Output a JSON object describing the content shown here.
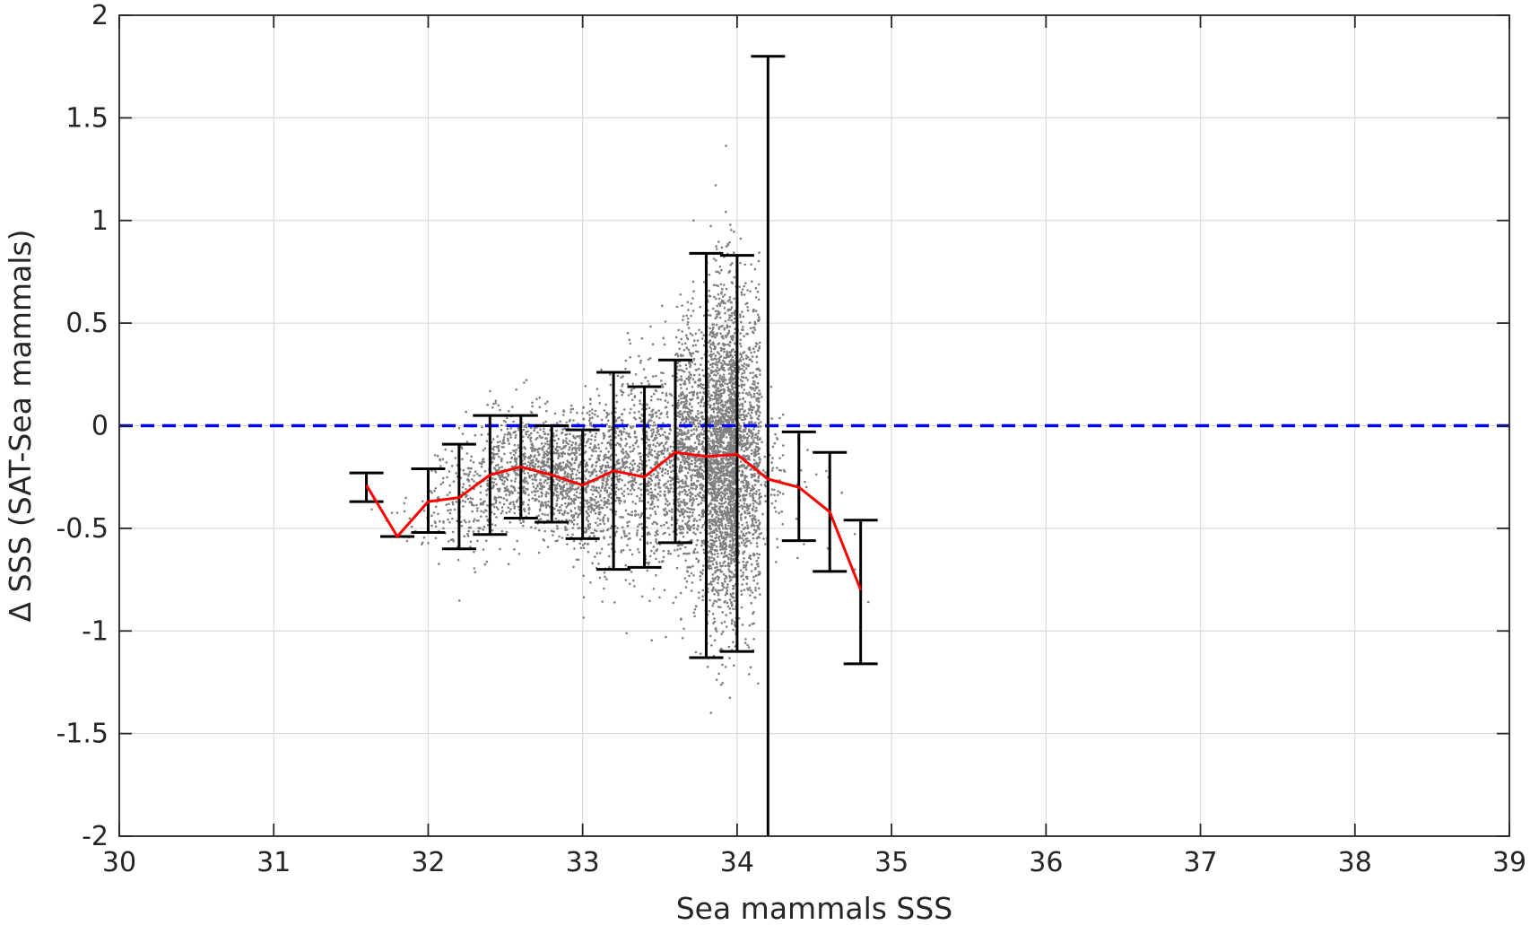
{
  "chart_data": {
    "type": "scatter",
    "title": "",
    "xlabel": "Sea mammals SSS",
    "ylabel": "Δ SSS (SAT-Sea mammals)",
    "xlim": [
      30,
      39
    ],
    "ylim": [
      -2,
      2
    ],
    "xticks": [
      30,
      31,
      32,
      33,
      34,
      35,
      36,
      37,
      38,
      39
    ],
    "xtick_labels": [
      "30",
      "31",
      "32",
      "33",
      "34",
      "35",
      "36",
      "37",
      "38",
      "39"
    ],
    "yticks": [
      2,
      1.5,
      1,
      0.5,
      0,
      -0.5,
      -1,
      -1.5,
      -2
    ],
    "ytick_labels": [
      "2",
      "1.5",
      "1",
      "0.5",
      "0",
      "-0.5",
      "-1",
      "-1.5",
      "-2"
    ],
    "grid": true,
    "colors": {
      "scatter": "#808080",
      "mean_line": "#ff0000",
      "zero_line": "#0000ff",
      "error_bars": "#000000",
      "grid": "#dcdcdc",
      "axes": "#262626"
    },
    "zero_reference_line": {
      "y": 0,
      "style": "dashed"
    },
    "binned_mean": {
      "x": [
        31.6,
        31.8,
        32.0,
        32.2,
        32.4,
        32.6,
        32.8,
        33.0,
        33.2,
        33.4,
        33.6,
        33.8,
        34.0,
        34.2,
        34.4,
        34.6,
        34.8
      ],
      "y": [
        -0.29,
        -0.54,
        -0.37,
        -0.35,
        -0.24,
        -0.2,
        -0.24,
        -0.29,
        -0.22,
        -0.25,
        -0.13,
        -0.15,
        -0.14,
        -0.26,
        -0.3,
        -0.42,
        -0.8
      ]
    },
    "error_bars": [
      {
        "x": 31.6,
        "low": -0.37,
        "high": -0.23
      },
      {
        "x": 31.8,
        "low": -0.54,
        "high": -0.54
      },
      {
        "x": 32.0,
        "low": -0.52,
        "high": -0.21
      },
      {
        "x": 32.2,
        "low": -0.6,
        "high": -0.09
      },
      {
        "x": 32.4,
        "low": -0.53,
        "high": 0.05
      },
      {
        "x": 32.6,
        "low": -0.45,
        "high": 0.05
      },
      {
        "x": 32.8,
        "low": -0.47,
        "high": 0.0
      },
      {
        "x": 33.0,
        "low": -0.55,
        "high": -0.02
      },
      {
        "x": 33.2,
        "low": -0.7,
        "high": 0.26
      },
      {
        "x": 33.4,
        "low": -0.69,
        "high": 0.19
      },
      {
        "x": 33.6,
        "low": -0.57,
        "high": 0.32
      },
      {
        "x": 33.8,
        "low": -1.13,
        "high": 0.84
      },
      {
        "x": 34.0,
        "low": -1.1,
        "high": 0.83
      },
      {
        "x": 34.2,
        "low": -2.0,
        "high": 1.8
      },
      {
        "x": 34.4,
        "low": -0.56,
        "high": -0.03
      },
      {
        "x": 34.6,
        "low": -0.71,
        "high": -0.13
      },
      {
        "x": 34.8,
        "low": -1.16,
        "high": -0.46
      }
    ],
    "scatter_density": [
      {
        "x": 31.7,
        "mean": -0.4,
        "sd": 0.06,
        "count": 4
      },
      {
        "x": 31.9,
        "mean": -0.45,
        "sd": 0.08,
        "count": 15
      },
      {
        "x": 32.1,
        "mean": -0.36,
        "sd": 0.13,
        "count": 80
      },
      {
        "x": 32.3,
        "mean": -0.33,
        "sd": 0.15,
        "count": 160
      },
      {
        "x": 32.5,
        "mean": -0.24,
        "sd": 0.15,
        "count": 260
      },
      {
        "x": 32.7,
        "mean": -0.22,
        "sd": 0.14,
        "count": 360
      },
      {
        "x": 32.9,
        "mean": -0.26,
        "sd": 0.15,
        "count": 420
      },
      {
        "x": 33.1,
        "mean": -0.27,
        "sd": 0.2,
        "count": 420
      },
      {
        "x": 33.3,
        "mean": -0.23,
        "sd": 0.26,
        "count": 360
      },
      {
        "x": 33.5,
        "mean": -0.2,
        "sd": 0.25,
        "count": 420
      },
      {
        "x": 33.7,
        "mean": -0.14,
        "sd": 0.32,
        "count": 900
      },
      {
        "x": 33.9,
        "mean": -0.15,
        "sd": 0.4,
        "count": 1900
      },
      {
        "x": 34.05,
        "mean": -0.15,
        "sd": 0.38,
        "count": 1000
      },
      {
        "x": 34.2,
        "mean": -0.26,
        "sd": 0.16,
        "count": 90
      },
      {
        "x": 34.4,
        "mean": -0.3,
        "sd": 0.2,
        "count": 12
      },
      {
        "x": 34.6,
        "mean": -0.42,
        "sd": 0.25,
        "count": 6
      },
      {
        "x": 34.8,
        "mean": -0.8,
        "sd": 0.3,
        "count": 3
      }
    ]
  }
}
